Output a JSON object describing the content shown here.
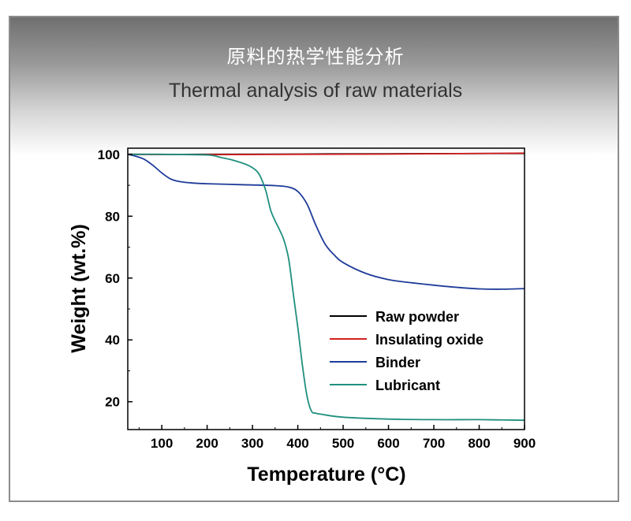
{
  "header": {
    "title_cn": "原料的热学性能分析",
    "title_en": "Thermal analysis of raw materials"
  },
  "chart_data": {
    "type": "line",
    "xlabel": "Temperature",
    "xlabel_unit": "(°C)",
    "ylabel": "Weight (wt.%)",
    "xlim": [
      25,
      900
    ],
    "ylim": [
      11,
      102
    ],
    "xticks": [
      100,
      200,
      300,
      400,
      500,
      600,
      700,
      800,
      900
    ],
    "yticks": [
      20,
      40,
      60,
      80,
      100
    ],
    "legend_position": "lower-right",
    "series": [
      {
        "name": "Raw powder",
        "color": "#000000",
        "x": [
          25,
          200,
          400,
          600,
          900
        ],
        "y": [
          100.0,
          100.0,
          100.1,
          100.2,
          100.3
        ]
      },
      {
        "name": "Insulating oxide",
        "color": "#d42020",
        "x": [
          25,
          200,
          400,
          600,
          900
        ],
        "y": [
          100.0,
          99.9,
          100.0,
          100.1,
          100.4
        ]
      },
      {
        "name": "Binder",
        "color": "#1f3c99",
        "x": [
          25,
          40,
          60,
          80,
          100,
          120,
          140,
          170,
          200,
          250,
          300,
          350,
          380,
          400,
          420,
          440,
          460,
          480,
          500,
          550,
          600,
          650,
          700,
          750,
          800,
          850,
          900
        ],
        "y": [
          100,
          99.5,
          98.5,
          96.5,
          94,
          92,
          91.2,
          90.7,
          90.5,
          90.3,
          90.1,
          89.9,
          89.4,
          88,
          84,
          77,
          71,
          67.5,
          65,
          61.5,
          59.5,
          58.5,
          57.7,
          57.0,
          56.5,
          56.4,
          56.6
        ]
      },
      {
        "name": "Lubricant",
        "color": "#1f8f7f",
        "x": [
          25,
          100,
          200,
          230,
          260,
          290,
          310,
          320,
          330,
          340,
          350,
          360,
          370,
          380,
          390,
          400,
          410,
          420,
          430,
          440,
          450,
          500,
          600,
          700,
          800,
          900
        ],
        "y": [
          100,
          100,
          99.8,
          99,
          98,
          96.5,
          94.5,
          92,
          88,
          82,
          78.5,
          75.5,
          72,
          66,
          55,
          44,
          32,
          22,
          17,
          16.3,
          16,
          15,
          14.4,
          14.2,
          14.2,
          14.0
        ]
      }
    ]
  }
}
